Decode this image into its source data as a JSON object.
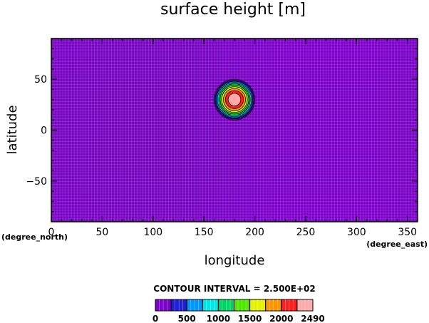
{
  "chart_data": {
    "type": "heatmap",
    "title": "surface height [m]",
    "xlabel": "longitude",
    "ylabel": "latitude",
    "x_unit": "(degree_east)",
    "y_unit": "(degree_north)",
    "xlim": [
      0,
      360
    ],
    "ylim": [
      -90,
      90
    ],
    "x_ticks": [
      0,
      50,
      100,
      150,
      200,
      250,
      300,
      350
    ],
    "y_ticks": [
      -50,
      0,
      50
    ],
    "grid": true,
    "background_value_color": "#7b00c8",
    "feature": {
      "shape": "circular mountain",
      "center_lon": 180,
      "center_lat": 30,
      "max_height": 2490,
      "outer_radius_deg": 20,
      "contour_levels": [
        0,
        250,
        500,
        750,
        1000,
        1250,
        1500,
        1750,
        2000,
        2250,
        2490
      ]
    },
    "contour_interval_label": "CONTOUR INTERVAL = 2.500E+02",
    "colorbar": {
      "tick_labels": [
        "0",
        "500",
        "1000",
        "1500",
        "2000",
        "2490"
      ],
      "colors": [
        "#7b00c8",
        "#1e1ed2",
        "#0096ff",
        "#00e6e6",
        "#00d264",
        "#50e600",
        "#e6f000",
        "#ff9600",
        "#ff1e1e",
        "#ffaaaa"
      ]
    }
  }
}
